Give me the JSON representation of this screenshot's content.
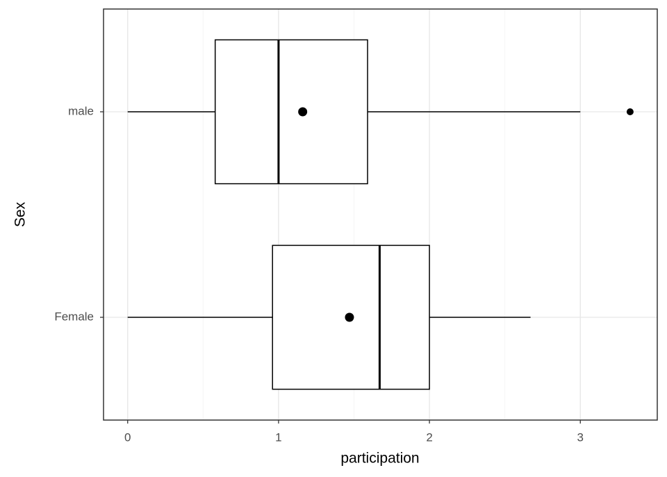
{
  "chart_data": {
    "type": "boxplot",
    "orientation": "horizontal",
    "x_label": "participation",
    "y_label": "Sex",
    "categories": [
      "Female",
      "male"
    ],
    "boxes": [
      {
        "min": 0,
        "q1": 0.96,
        "median": 1.67,
        "q3": 2.0,
        "max": 2.67,
        "mean": 1.47,
        "outliers": []
      },
      {
        "min": 0,
        "q1": 0.58,
        "median": 1.0,
        "q3": 1.59,
        "max": 3.0,
        "mean": 1.16,
        "outliers": [
          3.33
        ]
      }
    ],
    "xlim": [
      -0.16,
      3.51
    ],
    "xticks": [
      0,
      1,
      2,
      3
    ],
    "x_minor_ticks": [
      0.5,
      1.5,
      2.5
    ],
    "grid": true,
    "box_fill": "#ffffff",
    "line_color": "#000000"
  }
}
